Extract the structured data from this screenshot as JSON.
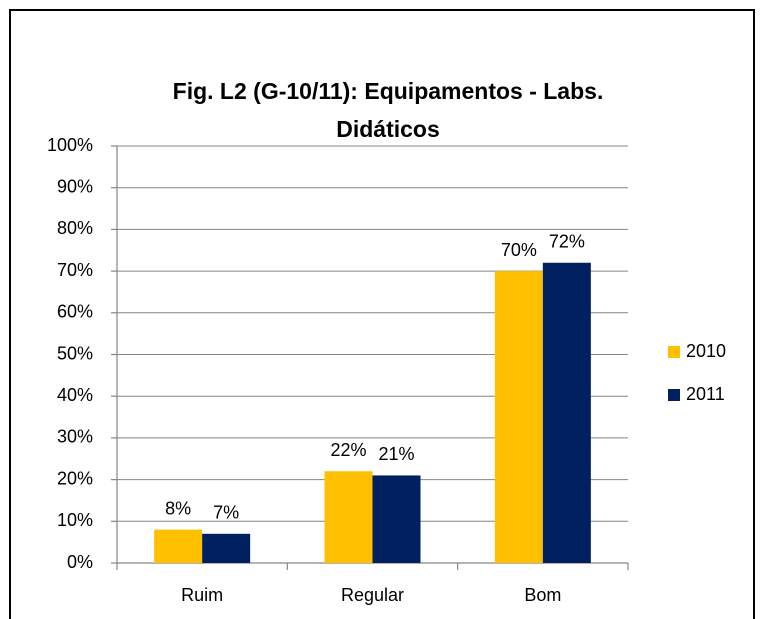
{
  "chart_data": {
    "type": "bar",
    "title": "Fig. L2 (G-10/11): Equipamentos - Labs. Didáticos",
    "categories": [
      "Ruim",
      "Regular",
      "Bom"
    ],
    "series": [
      {
        "name": "2010",
        "color": "#ffc000",
        "values": [
          8,
          22,
          70
        ],
        "value_labels": [
          "8%",
          "22%",
          "70%"
        ]
      },
      {
        "name": "2011",
        "color": "#002060",
        "values": [
          7,
          21,
          72
        ],
        "value_labels": [
          "7%",
          "21%",
          "72%"
        ]
      }
    ],
    "ylim": [
      0,
      100
    ],
    "yticks": [
      {
        "value": 0,
        "label": "0%"
      },
      {
        "value": 10,
        "label": "10%"
      },
      {
        "value": 20,
        "label": "20%"
      },
      {
        "value": 30,
        "label": "30%"
      },
      {
        "value": 40,
        "label": "40%"
      },
      {
        "value": 50,
        "label": "50%"
      },
      {
        "value": 60,
        "label": "60%"
      },
      {
        "value": 70,
        "label": "70%"
      },
      {
        "value": 80,
        "label": "80%"
      },
      {
        "value": 90,
        "label": "90%"
      },
      {
        "value": 100,
        "label": "100%"
      }
    ],
    "grid": true,
    "legend": "right"
  }
}
